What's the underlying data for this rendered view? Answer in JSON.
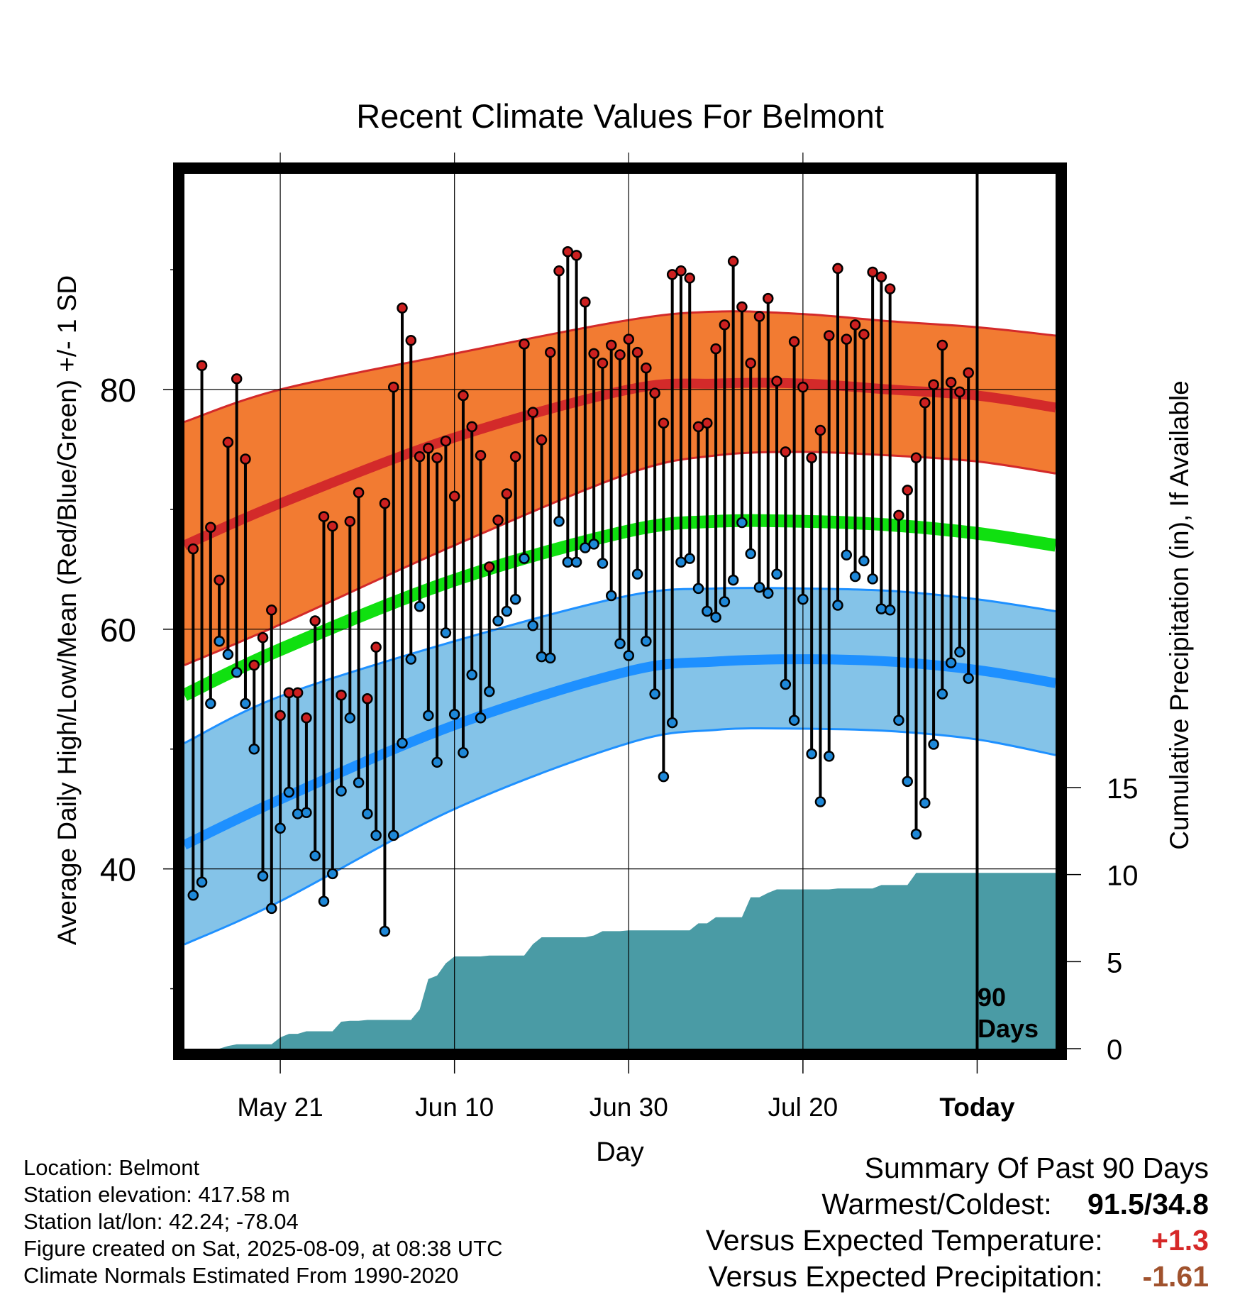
{
  "chart_data": {
    "type": "line",
    "title": "Recent Climate Values For Belmont",
    "xlabel": "Day",
    "ylabel_left": "Average Daily High/Low/Mean (Red/Blue/Green) +/- 1 SD",
    "ylabel_right": "Cumulative Precipitation (in), If Available",
    "x_tick_labels": [
      "May 21",
      "Jun 10",
      "Jun 30",
      "Jul 20",
      "Today"
    ],
    "x_tick_days": [
      10,
      30,
      50,
      70,
      90
    ],
    "xlim": [
      -1,
      99
    ],
    "y_left_ticks": [
      40,
      60,
      80
    ],
    "y_left_minor_ticks": [
      30,
      50,
      70,
      90
    ],
    "ylim_left": [
      25,
      98
    ],
    "y_right_ticks": [
      0,
      5,
      10,
      15
    ],
    "ylim_right": [
      0,
      15
    ],
    "grid": true,
    "today_day": 90,
    "period_label": "90",
    "period_unit": "Days",
    "colors": {
      "high_band": "#f27b32",
      "high_mean": "#d32a2a",
      "low_band": "#84c3e8",
      "low_mean": "#1e90ff",
      "mean_line": "#10e010",
      "precip": "#4a9ba5",
      "high_dot": "#cc2020",
      "low_dot": "#1e88d8"
    },
    "normals": {
      "days": [
        -1,
        10,
        30,
        50,
        60,
        70,
        80,
        90,
        99
      ],
      "high_mean": [
        67,
        70.5,
        76,
        80,
        80.5,
        80.5,
        80,
        79.5,
        78.5
      ],
      "high_upper": [
        77.3,
        80,
        83,
        85.8,
        86.5,
        86.3,
        85.7,
        85.2,
        84.5
      ],
      "high_lower": [
        57,
        60.4,
        67,
        73,
        74.5,
        74.8,
        74.5,
        74,
        73
      ],
      "low_mean": [
        42,
        45.8,
        52,
        56.5,
        57.3,
        57.5,
        57.3,
        56.6,
        55.5
      ],
      "low_upper": [
        50.5,
        54.4,
        59,
        62.8,
        63.4,
        63.4,
        63.2,
        62.5,
        61.5
      ],
      "low_lower": [
        33.7,
        37.3,
        45,
        50.5,
        51.6,
        51.7,
        51.5,
        50.8,
        49.5
      ],
      "mean": [
        54.5,
        58.3,
        64.1,
        68.2,
        69,
        69,
        68.7,
        68,
        67
      ]
    },
    "series": [
      {
        "name": "Daily High",
        "days": [
          0,
          1,
          2,
          3,
          4,
          5,
          6,
          7,
          8,
          9,
          10,
          11,
          12,
          13,
          14,
          15,
          16,
          17,
          18,
          19,
          20,
          21,
          22,
          23,
          24,
          25,
          26,
          27,
          28,
          29,
          30,
          31,
          32,
          33,
          34,
          35,
          36,
          37,
          38,
          39,
          40,
          41,
          42,
          43,
          44,
          45,
          46,
          47,
          48,
          49,
          50,
          51,
          52,
          53,
          54,
          55,
          56,
          57,
          58,
          59,
          60,
          61,
          62,
          63,
          64,
          65,
          66,
          67,
          68,
          69,
          70,
          71,
          72,
          73,
          74,
          75,
          76,
          77,
          78,
          79,
          80,
          81,
          82,
          83,
          84,
          85,
          86,
          87,
          88,
          89
        ],
        "values": [
          66.7,
          82,
          68.5,
          64.1,
          75.6,
          80.9,
          74.2,
          57,
          59.3,
          61.6,
          52.8,
          54.7,
          54.7,
          52.6,
          60.7,
          69.4,
          68.6,
          54.5,
          69,
          71.4,
          54.2,
          58.5,
          70.5,
          80.2,
          86.8,
          84.1,
          74.4,
          75.1,
          74.3,
          75.7,
          71.1,
          79.5,
          76.9,
          74.5,
          65.2,
          69.1,
          71.3,
          74.4,
          83.8,
          78.1,
          75.8,
          83.1,
          89.9,
          91.5,
          91.2,
          87.3,
          83,
          82.2,
          83.7,
          82.9,
          84.2,
          83.1,
          81.8,
          79.7,
          77.2,
          89.6,
          89.9,
          89.3,
          76.9,
          77.2,
          83.4,
          85.4,
          90.7,
          86.9,
          82.2,
          86.1,
          87.6,
          80.7,
          74.8,
          84,
          80.2,
          74.3,
          76.6,
          84.5,
          90.1,
          84.2,
          85.4,
          84.6,
          89.8,
          89.4,
          88.4,
          69.5,
          71.6,
          74.3,
          78.9,
          80.4,
          83.7,
          80.6,
          79.8,
          81.4
        ]
      },
      {
        "name": "Daily Low",
        "days": [
          0,
          1,
          2,
          3,
          4,
          5,
          6,
          7,
          8,
          9,
          10,
          11,
          12,
          13,
          14,
          15,
          16,
          17,
          18,
          19,
          20,
          21,
          22,
          23,
          24,
          25,
          26,
          27,
          28,
          29,
          30,
          31,
          32,
          33,
          34,
          35,
          36,
          37,
          38,
          39,
          40,
          41,
          42,
          43,
          44,
          45,
          46,
          47,
          48,
          49,
          50,
          51,
          52,
          53,
          54,
          55,
          56,
          57,
          58,
          59,
          60,
          61,
          62,
          63,
          64,
          65,
          66,
          67,
          68,
          69,
          70,
          71,
          72,
          73,
          74,
          75,
          76,
          77,
          78,
          79,
          80,
          81,
          82,
          83,
          84,
          85,
          86,
          87,
          88,
          89
        ],
        "values": [
          37.8,
          38.9,
          53.8,
          59,
          57.9,
          56.4,
          53.8,
          50,
          39.4,
          36.7,
          43.4,
          46.4,
          44.6,
          44.7,
          41.1,
          37.3,
          39.6,
          46.5,
          52.6,
          47.2,
          44.6,
          42.8,
          34.8,
          42.8,
          50.5,
          57.5,
          61.9,
          52.8,
          48.9,
          59.7,
          52.9,
          49.7,
          56.2,
          52.6,
          54.8,
          60.7,
          61.5,
          62.5,
          65.9,
          60.3,
          57.7,
          57.6,
          69,
          65.6,
          65.6,
          66.8,
          67.1,
          65.5,
          62.8,
          58.8,
          57.8,
          64.6,
          59,
          54.6,
          47.7,
          52.2,
          65.6,
          65.9,
          63.4,
          61.5,
          61,
          62.3,
          64.1,
          68.9,
          66.3,
          63.5,
          63,
          64.6,
          55.4,
          52.4,
          62.5,
          49.6,
          45.6,
          49.4,
          62,
          66.2,
          64.4,
          65.7,
          64.2,
          61.7,
          61.6,
          52.4,
          47.3,
          42.9,
          45.5,
          50.4,
          54.6,
          57.2,
          58.1,
          55.9
        ]
      },
      {
        "name": "Cumulative Precipitation",
        "days": [
          -1,
          3,
          4,
          5,
          6,
          7,
          8,
          9,
          10,
          11,
          12,
          13,
          14,
          15,
          16,
          17,
          18,
          19,
          20,
          21,
          22,
          23,
          24,
          25,
          26,
          27,
          28,
          29,
          30,
          31,
          32,
          33,
          34,
          35,
          36,
          37,
          38,
          39,
          40,
          41,
          42,
          43,
          44,
          45,
          46,
          47,
          48,
          49,
          50,
          51,
          52,
          53,
          54,
          55,
          56,
          57,
          58,
          59,
          60,
          61,
          62,
          63,
          64,
          65,
          66,
          67,
          68,
          69,
          70,
          71,
          72,
          73,
          74,
          75,
          76,
          77,
          78,
          79,
          80,
          81,
          82,
          83,
          84,
          85,
          86,
          87,
          88,
          89,
          90,
          99
        ],
        "values": [
          0,
          0,
          0.15,
          0.25,
          0.25,
          0.25,
          0.25,
          0.25,
          0.65,
          0.85,
          0.85,
          1,
          1,
          1,
          1,
          1.55,
          1.6,
          1.6,
          1.65,
          1.65,
          1.65,
          1.65,
          1.65,
          1.65,
          2.25,
          4,
          4.2,
          4.9,
          5.3,
          5.3,
          5.3,
          5.3,
          5.35,
          5.35,
          5.35,
          5.35,
          5.35,
          6,
          6.4,
          6.4,
          6.4,
          6.4,
          6.4,
          6.4,
          6.5,
          6.75,
          6.75,
          6.75,
          6.8,
          6.8,
          6.8,
          6.8,
          6.8,
          6.8,
          6.8,
          6.8,
          7.2,
          7.2,
          7.55,
          7.55,
          7.55,
          7.55,
          8.7,
          8.7,
          8.95,
          9.15,
          9.15,
          9.15,
          9.15,
          9.15,
          9.15,
          9.15,
          9.2,
          9.2,
          9.2,
          9.2,
          9.2,
          9.4,
          9.4,
          9.4,
          9.4,
          10.1,
          10.1,
          10.1,
          10.1,
          10.1,
          10.1,
          10.1,
          10.1,
          10.1
        ]
      }
    ]
  },
  "info": {
    "location": "Location: Belmont",
    "elevation": "Station elevation: 417.58 m",
    "latlon": "Station lat/lon: 42.24; -78.04",
    "created": "Figure created on Sat, 2025-08-09, at 08:38 UTC",
    "normals": "Climate Normals Estimated From 1990-2020"
  },
  "summary": {
    "heading": "Summary Of Past 90 Days",
    "warm_cold_label": "Warmest/Coldest:",
    "warm_cold_value": "91.5/34.8",
    "temp_label": "Versus Expected Temperature:",
    "temp_value": "+1.3",
    "temp_color": "#d62828",
    "precip_label": "Versus Expected Precipitation:",
    "precip_value": "-1.61",
    "precip_color": "#a0522d"
  }
}
